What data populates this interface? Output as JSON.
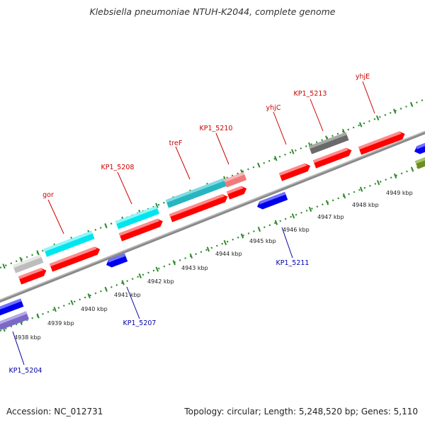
{
  "title": "Klebsiella pneumoniae NTUH-K2044, complete genome",
  "footer": {
    "accession": "Accession: NC_012731",
    "topology": "Topology: circular; Length: 5,248,520 bp; Genes: 5,110"
  },
  "colors": {
    "forward_label": "#cc0000",
    "reverse_label": "#0000aa",
    "backbone": "#8a8a8a",
    "tick": "#2e8b2e",
    "red_gene": "#ff0000",
    "cyan_gene": "#00e5ee",
    "teal_gene": "#27b5c0",
    "light_red_gene": "#f07a7a",
    "gray_gene": "#bdbdbd",
    "dark_gray_gene": "#6a6a6a",
    "blue_gene": "#0000ee",
    "slate_gene": "#7b68c8",
    "olive_gene": "#6b8e23"
  },
  "kbp_labels": [
    "4938 kbp",
    "4939 kbp",
    "4940 kbp",
    "4941 kbp",
    "4942 kbp",
    "4943 kbp",
    "4944 kbp",
    "4945 kbp",
    "4946 kbp",
    "4947 kbp",
    "4948 kbp",
    "4949 kbp"
  ],
  "forward_labels": [
    "gor",
    "KP1_5208",
    "treF",
    "KP1_5210",
    "yhjC",
    "KP1_5213",
    "yhjE"
  ],
  "reverse_labels": [
    "KP1_5204",
    "KP1_5207",
    "KP1_5211"
  ]
}
